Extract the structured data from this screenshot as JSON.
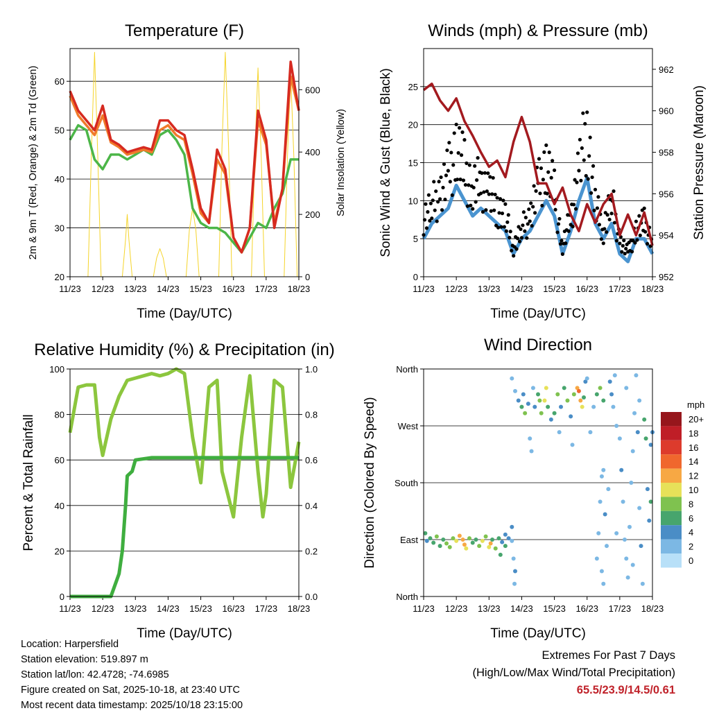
{
  "footer": {
    "location": "Location: Harpersfield",
    "elevation": "Station elevation: 519.897 m",
    "latlon": "Station lat/lon: 42.4728; -74.6985",
    "created": "Figure created on Sat, 2025-10-18, at 23:40 UTC",
    "recent": "Most recent data timestamp: 2025/10/18 23:15:00",
    "extremes_title": "Extremes For Past 7 Days",
    "extremes_sub": "(High/Low/Max Wind/Total Precipitation)",
    "extremes_values": "65.5/23.9/14.5/0.61"
  },
  "chart_data": [
    {
      "type": "line",
      "title": "Temperature (F)",
      "xlabel": "Time (Day/UTC)",
      "ylabel": "2m & 9m T (Red, Orange) & 2m Td (Green)",
      "ylabel_right": "Solar Insolation (Yellow)",
      "xticks": [
        "11/23",
        "12/23",
        "13/23",
        "14/23",
        "15/23",
        "16/23",
        "17/23",
        "18/23"
      ],
      "xlim": [
        0,
        7
      ],
      "ylim": [
        20,
        66.7
      ],
      "yticks": [
        20,
        30,
        40,
        50,
        60
      ],
      "ylim_right": [
        0,
        732
      ],
      "yticks_right": [
        0,
        200,
        400,
        600
      ],
      "x": [
        0,
        0.25,
        0.5,
        0.75,
        1,
        1.25,
        1.5,
        1.75,
        2,
        2.25,
        2.5,
        2.75,
        3,
        3.25,
        3.5,
        3.75,
        4,
        4.25,
        4.5,
        4.75,
        5,
        5.25,
        5.5,
        5.75,
        6,
        6.25,
        6.5,
        6.75,
        7
      ],
      "series": [
        {
          "name": "2m T",
          "color": "#d62a20",
          "values": [
            58,
            54,
            52,
            50,
            55,
            48,
            47,
            45.5,
            46,
            46.5,
            46,
            52,
            52,
            50,
            49,
            42,
            34,
            31,
            46,
            42,
            28,
            25,
            30,
            54,
            48,
            30,
            38,
            64,
            54
          ]
        },
        {
          "name": "9m T",
          "color": "#f07a2a",
          "values": [
            57,
            53,
            51,
            49,
            53,
            47.5,
            46.5,
            45,
            45.5,
            46,
            45.5,
            50,
            51,
            49,
            48,
            41,
            33,
            31,
            44,
            41,
            28,
            25,
            30,
            52,
            47,
            31,
            38,
            61,
            54
          ]
        },
        {
          "name": "2m Td",
          "color": "#4cb648",
          "values": [
            48,
            51,
            50,
            44,
            42,
            45,
            45,
            44,
            45,
            46,
            45,
            49,
            50,
            48,
            45,
            34,
            31,
            30,
            30,
            29,
            27,
            25,
            28,
            31,
            30,
            34,
            37,
            44,
            44
          ]
        },
        {
          "name": "Solar Insolation",
          "color": "#f5d42a",
          "axis": "right",
          "x": [
            0,
            0.55,
            0.65,
            0.75,
            0.85,
            0.95,
            1.6,
            1.7,
            1.75,
            1.8,
            1.9,
            2.55,
            2.65,
            2.75,
            2.85,
            2.95,
            3.55,
            3.65,
            3.75,
            3.85,
            3.95,
            4.55,
            4.65,
            4.75,
            4.85,
            4.95,
            5.55,
            5.65,
            5.75,
            5.85,
            5.95,
            6.55,
            6.65,
            6.75,
            6.85,
            6.95,
            7
          ],
          "values": [
            0,
            0,
            380,
            720,
            380,
            0,
            0,
            120,
            200,
            120,
            0,
            0,
            60,
            90,
            60,
            0,
            0,
            150,
            220,
            150,
            0,
            0,
            420,
            720,
            420,
            0,
            0,
            380,
            670,
            380,
            0,
            0,
            380,
            650,
            380,
            0,
            0
          ]
        }
      ]
    },
    {
      "type": "line",
      "title": "Winds (mph) & Pressure (mb)",
      "xlabel": "Time (Day/UTC)",
      "ylabel": "Sonic Wind & Gust (Blue, Black)",
      "ylabel_right": "Station Pressure (Maroon)",
      "xticks": [
        "11/23",
        "12/23",
        "13/23",
        "14/23",
        "15/23",
        "16/23",
        "17/23",
        "18/23"
      ],
      "xlim": [
        0,
        7
      ],
      "ylim": [
        0,
        30
      ],
      "yticks": [
        0,
        5,
        10,
        15,
        20,
        25
      ],
      "ylim_right": [
        952,
        963
      ],
      "yticks_right": [
        952,
        954,
        956,
        958,
        960,
        962
      ],
      "x": [
        0,
        0.25,
        0.5,
        0.75,
        1,
        1.25,
        1.5,
        1.75,
        2,
        2.25,
        2.5,
        2.75,
        3,
        3.25,
        3.5,
        3.75,
        4,
        4.25,
        4.5,
        4.75,
        5,
        5.25,
        5.5,
        5.75,
        6,
        6.25,
        6.5,
        6.75,
        7
      ],
      "series": [
        {
          "name": "Wind",
          "color": "#4a94d0",
          "values": [
            5,
            7,
            8,
            9,
            12,
            10,
            8,
            9,
            8,
            7,
            6,
            3,
            5,
            6,
            8,
            10,
            8,
            3,
            6,
            10,
            13,
            7,
            5,
            7,
            3,
            2,
            5,
            5,
            3
          ]
        },
        {
          "name": "Gust",
          "color": "#000000",
          "values": [
            10,
            12,
            14,
            17,
            22,
            18,
            15,
            16,
            14,
            12,
            10,
            5,
            8,
            10,
            15,
            19,
            14,
            5,
            10,
            18,
            25,
            12,
            8,
            13,
            6,
            4,
            8,
            9,
            6
          ]
        },
        {
          "name": "Station Pressure",
          "color": "#a31a1f",
          "axis": "right",
          "values": [
            961,
            961.3,
            960.5,
            960,
            960.6,
            959.5,
            958.8,
            958,
            957.3,
            957.6,
            956.8,
            958.5,
            959.7,
            958.5,
            956.5,
            956.5,
            955.5,
            956.3,
            955,
            954.2,
            955.5,
            954.6,
            955.5,
            956,
            954,
            955,
            954,
            955.1,
            953.5
          ]
        }
      ]
    },
    {
      "type": "line",
      "title": "Relative Humidity (%) & Precipitation (in)",
      "xlabel": "Time (Day/UTC)",
      "ylabel": "Percent & Total Rainfall",
      "xticks": [
        "11/23",
        "12/23",
        "13/23",
        "14/23",
        "15/23",
        "16/23",
        "17/23",
        "18/23"
      ],
      "xlim": [
        0,
        7
      ],
      "ylim": [
        0,
        100
      ],
      "yticks": [
        0,
        20,
        40,
        60,
        80,
        100
      ],
      "ylim_right": [
        0,
        1.0
      ],
      "yticks_right": [
        "0.0",
        "0.2",
        "0.4",
        "0.6",
        "0.8",
        "1.0"
      ],
      "series": [
        {
          "name": "Relative Humidity",
          "color": "#8cc63e",
          "x": [
            0,
            0.25,
            0.5,
            0.75,
            0.9,
            1,
            1.25,
            1.5,
            1.75,
            2,
            2.25,
            2.5,
            2.75,
            3,
            3.25,
            3.5,
            3.75,
            4,
            4.25,
            4.5,
            4.65,
            5,
            5.25,
            5.5,
            5.75,
            5.9,
            6,
            6.25,
            6.5,
            6.75,
            7
          ],
          "values": [
            72,
            92,
            93,
            93,
            70,
            62,
            78,
            88,
            95,
            96,
            97,
            98,
            97,
            98,
            100,
            98,
            70,
            50,
            92,
            95,
            55,
            35,
            70,
            97,
            55,
            35,
            45,
            95,
            92,
            48,
            68
          ]
        },
        {
          "name": "Total Precipitation",
          "color": "#3fae3f",
          "axis": "right",
          "x": [
            0,
            1.25,
            1.3,
            1.5,
            1.6,
            1.7,
            1.75,
            1.9,
            2,
            2.5,
            7
          ],
          "values": [
            0,
            0,
            0.02,
            0.1,
            0.2,
            0.4,
            0.53,
            0.55,
            0.6,
            0.61,
            0.61
          ]
        }
      ]
    },
    {
      "type": "scatter",
      "title": "Wind Direction",
      "xlabel": "Time (Day/UTC)",
      "ylabel": "Direction (Colored By Speed)",
      "xticks": [
        "11/23",
        "12/23",
        "13/23",
        "14/23",
        "15/23",
        "16/23",
        "17/23",
        "18/23"
      ],
      "xlim": [
        0,
        7
      ],
      "ylim": [
        0,
        360
      ],
      "yticks": [
        {
          "v": 0,
          "label": "North"
        },
        {
          "v": 90,
          "label": "East"
        },
        {
          "v": 180,
          "label": "South"
        },
        {
          "v": 270,
          "label": "West"
        },
        {
          "v": 360,
          "label": "North"
        }
      ],
      "colorbar": {
        "title": "mph",
        "labels": [
          "20+",
          "18",
          "16",
          "14",
          "12",
          "10",
          "8",
          "6",
          "4",
          "2",
          "0"
        ],
        "colors": [
          "#96161c",
          "#bf1e27",
          "#dd3b2c",
          "#f0672d",
          "#f7a844",
          "#e7e159",
          "#7fc24f",
          "#47a56d",
          "#4a8dc6",
          "#7cb8e4",
          "#b8e0f8"
        ]
      },
      "points": [
        [
          0.05,
          100,
          6
        ],
        [
          0.1,
          88,
          5
        ],
        [
          0.2,
          92,
          7
        ],
        [
          0.3,
          85,
          6
        ],
        [
          0.4,
          95,
          8
        ],
        [
          0.5,
          80,
          7
        ],
        [
          0.6,
          90,
          6
        ],
        [
          0.7,
          84,
          9
        ],
        [
          0.8,
          78,
          8
        ],
        [
          0.9,
          92,
          9
        ],
        [
          1.0,
          88,
          10
        ],
        [
          1.1,
          96,
          12
        ],
        [
          1.2,
          90,
          13
        ],
        [
          1.25,
          82,
          12
        ],
        [
          1.3,
          76,
          10
        ],
        [
          1.4,
          92,
          8
        ],
        [
          1.5,
          85,
          7
        ],
        [
          1.6,
          90,
          6
        ],
        [
          1.7,
          80,
          9
        ],
        [
          1.8,
          88,
          10
        ],
        [
          1.9,
          95,
          8
        ],
        [
          2.0,
          78,
          11
        ],
        [
          2.05,
          84,
          12
        ],
        [
          2.1,
          90,
          7
        ],
        [
          2.2,
          76,
          8
        ],
        [
          2.3,
          92,
          6
        ],
        [
          2.4,
          86,
          5
        ],
        [
          2.5,
          80,
          7
        ],
        [
          2.6,
          92,
          4
        ],
        [
          2.7,
          88,
          3
        ],
        [
          2.75,
          60,
          3
        ],
        [
          2.8,
          40,
          4
        ],
        [
          2.78,
          20,
          3
        ],
        [
          2.7,
          110,
          4
        ],
        [
          2.5,
          98,
          5
        ],
        [
          2.35,
          66,
          6
        ],
        [
          2.7,
          345,
          2
        ],
        [
          2.8,
          325,
          3
        ],
        [
          2.9,
          310,
          4
        ],
        [
          3.0,
          300,
          6
        ],
        [
          3.05,
          320,
          5
        ],
        [
          3.1,
          290,
          8
        ],
        [
          3.2,
          305,
          4
        ],
        [
          3.25,
          250,
          2
        ],
        [
          3.3,
          230,
          3
        ],
        [
          3.35,
          330,
          3
        ],
        [
          3.4,
          300,
          5
        ],
        [
          3.5,
          320,
          7
        ],
        [
          3.55,
          310,
          9
        ],
        [
          3.6,
          290,
          8
        ],
        [
          3.7,
          310,
          11
        ],
        [
          3.75,
          330,
          10
        ],
        [
          3.8,
          300,
          6
        ],
        [
          3.9,
          280,
          5
        ],
        [
          4.0,
          290,
          7
        ],
        [
          4.1,
          320,
          8
        ],
        [
          4.15,
          260,
          3
        ],
        [
          4.2,
          300,
          4
        ],
        [
          4.3,
          330,
          6
        ],
        [
          4.4,
          310,
          9
        ],
        [
          4.5,
          285,
          5
        ],
        [
          4.55,
          240,
          2
        ],
        [
          4.6,
          320,
          8
        ],
        [
          4.7,
          330,
          12
        ],
        [
          4.75,
          325,
          14
        ],
        [
          4.8,
          310,
          13
        ],
        [
          4.85,
          300,
          11
        ],
        [
          4.9,
          315,
          7
        ],
        [
          4.95,
          340,
          4
        ],
        [
          5.0,
          345,
          3
        ],
        [
          5.1,
          260,
          2
        ],
        [
          5.2,
          300,
          3
        ],
        [
          5.3,
          320,
          6
        ],
        [
          5.4,
          330,
          8
        ],
        [
          5.5,
          310,
          7
        ],
        [
          5.5,
          200,
          3
        ],
        [
          5.45,
          190,
          2
        ],
        [
          5.4,
          150,
          3
        ],
        [
          5.35,
          100,
          2
        ],
        [
          5.3,
          60,
          2
        ],
        [
          5.45,
          40,
          3
        ],
        [
          5.5,
          20,
          2
        ],
        [
          5.55,
          130,
          4
        ],
        [
          5.6,
          80,
          3
        ],
        [
          5.65,
          170,
          2
        ],
        [
          5.7,
          340,
          5
        ],
        [
          5.75,
          320,
          4
        ],
        [
          5.8,
          300,
          3
        ],
        [
          5.85,
          350,
          2
        ],
        [
          5.9,
          270,
          2
        ],
        [
          6.0,
          250,
          3
        ],
        [
          6.05,
          200,
          4
        ],
        [
          6.1,
          150,
          3
        ],
        [
          6.15,
          90,
          2
        ],
        [
          6.2,
          60,
          3
        ],
        [
          6.25,
          30,
          2
        ],
        [
          6.3,
          110,
          3
        ],
        [
          6.35,
          180,
          2
        ],
        [
          6.4,
          230,
          3
        ],
        [
          6.45,
          290,
          2
        ],
        [
          6.5,
          350,
          3
        ],
        [
          6.55,
          260,
          4
        ],
        [
          6.6,
          140,
          3
        ],
        [
          6.65,
          80,
          4
        ],
        [
          6.7,
          20,
          3
        ],
        [
          6.75,
          280,
          6
        ],
        [
          6.8,
          250,
          7
        ],
        [
          6.85,
          170,
          5
        ],
        [
          6.9,
          120,
          4
        ],
        [
          6.95,
          240,
          5
        ],
        [
          7.0,
          260,
          4
        ],
        [
          6.6,
          310,
          2
        ],
        [
          6.2,
          330,
          2
        ],
        [
          5.9,
          100,
          2
        ],
        [
          6.4,
          50,
          2
        ],
        [
          6.95,
          150,
          6
        ]
      ]
    }
  ]
}
